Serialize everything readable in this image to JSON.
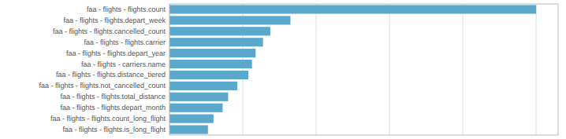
{
  "chart_data": {
    "type": "bar",
    "orientation": "horizontal",
    "categories": [
      "faa - flights - flights.count",
      "faa - flights - flights.depart_week",
      "faa - flights - flights.cancelled_count",
      "faa - flights - flights.carrier",
      "faa - flights - flights.depart_year",
      "faa - flights - carriers.name",
      "faa - flights - flights.distance_tiered",
      "faa - flights - flights.not_cancelled_count",
      "faa - flights - flights.total_distance",
      "faa - flights - flights.depart_month",
      "faa - flights - flights.count_long_flight",
      "faa - flights - flights.is_long_flight"
    ],
    "values": [
      1000,
      330,
      275,
      255,
      235,
      225,
      215,
      185,
      160,
      145,
      120,
      105
    ],
    "color": "#5ba8cc",
    "xlim": [
      0,
      1060
    ],
    "xticks": [
      0,
      200,
      400,
      600,
      800,
      1000
    ],
    "grid": true,
    "tick_labels": "y"
  }
}
